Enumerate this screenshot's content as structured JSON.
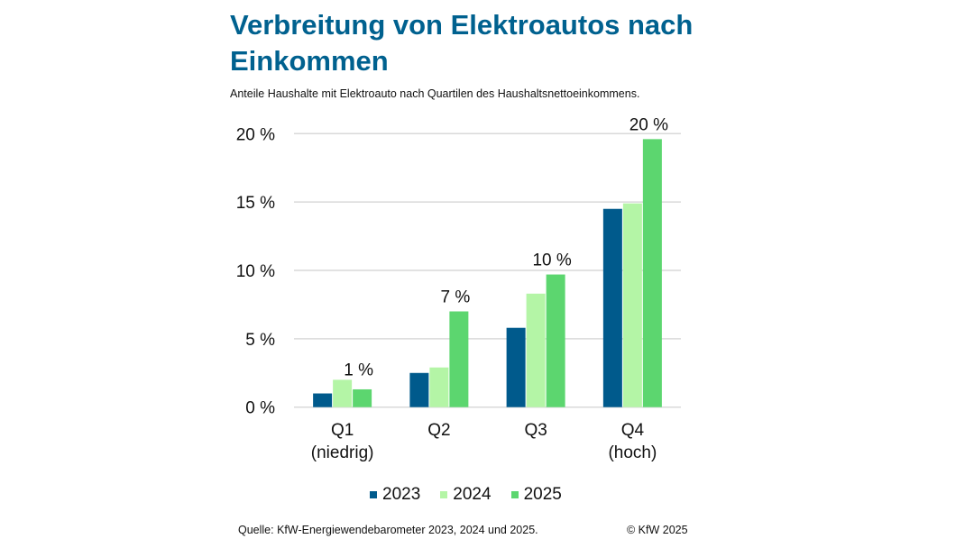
{
  "chart_data": {
    "type": "bar",
    "title": "Verbreitung von Elektroautos nach Einkommen",
    "subtitle": "Anteile Haushalte mit Elektroauto nach Quartilen des Haushaltsnettoeinkommens.",
    "categories": [
      [
        "Q1",
        "(niedrig)"
      ],
      [
        "Q2"
      ],
      [
        "Q3"
      ],
      [
        "Q4",
        "(hoch)"
      ]
    ],
    "series": [
      {
        "name": "2023",
        "color": "#005a8c",
        "values": [
          1.0,
          2.5,
          5.8,
          14.5
        ]
      },
      {
        "name": "2024",
        "color": "#b4f5a6",
        "values": [
          2.0,
          2.9,
          8.3,
          14.9
        ]
      },
      {
        "name": "2025",
        "color": "#5cd66f",
        "values": [
          1.3,
          7.0,
          9.7,
          19.6
        ]
      }
    ],
    "data_labels": [
      "1 %",
      "7 %",
      "10 %",
      "20 %"
    ],
    "ylim": [
      0,
      20
    ],
    "yticks": [
      0,
      5,
      10,
      15,
      20
    ],
    "ytick_labels": [
      "0 %",
      "5 %",
      "10 %",
      "15 %",
      "20 %"
    ],
    "grid": true,
    "legend": "bottom",
    "xlabel": "",
    "ylabel": ""
  },
  "footer": {
    "source": "Quelle: KfW-Energiewendebarometer 2023, 2024 und 2025.",
    "copyright": "© KfW 2025"
  }
}
